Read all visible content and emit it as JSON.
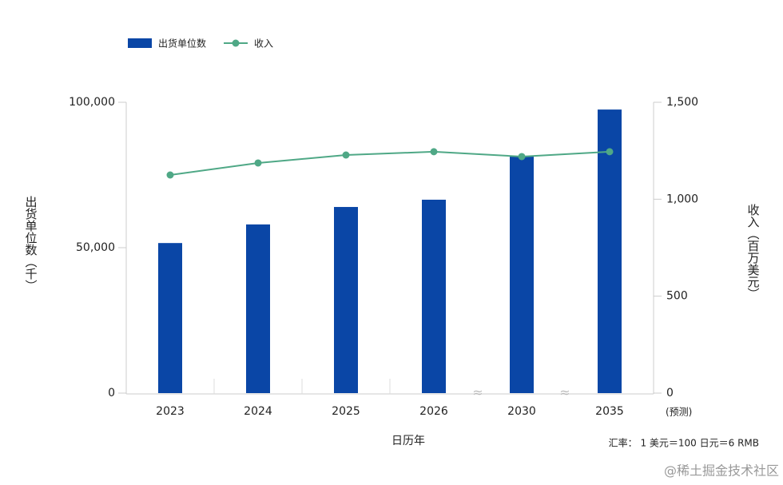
{
  "chart_data": {
    "type": "bar",
    "legend_position": "top-left",
    "categories": [
      "2023",
      "2024",
      "2025",
      "2026",
      "2030",
      "2035"
    ],
    "series": [
      {
        "name": "出货单位数",
        "color": "#0a46a6",
        "values": [
          51600,
          58000,
          64000,
          66500,
          81600,
          97500
        ]
      },
      {
        "name": "收入",
        "color": "#4fa886",
        "type": "line",
        "axis": "y2",
        "values": [
          1125,
          1187,
          1228,
          1245,
          1220,
          1245
        ]
      }
    ],
    "ylim": [
      0,
      100000
    ],
    "yticks": [
      0,
      {
        "value": 50000,
        "label": "50,000"
      },
      {
        "value": 100000,
        "label": "100,000"
      }
    ],
    "y2lim": [
      0,
      1500
    ],
    "y2ticks": [
      0,
      500,
      {
        "value": 1000,
        "label": "1,000"
      },
      {
        "value": 1500,
        "label": "1,500"
      }
    ],
    "ylabel": "出货单位数（千）",
    "y2label": "收入（百万美元）",
    "xlabel": "日历年",
    "forecast_note": "(预测)",
    "footnote": "汇率： 1 美元＝100 日元＝6 RMB",
    "watermark": "@稀土掘金技术社区"
  }
}
